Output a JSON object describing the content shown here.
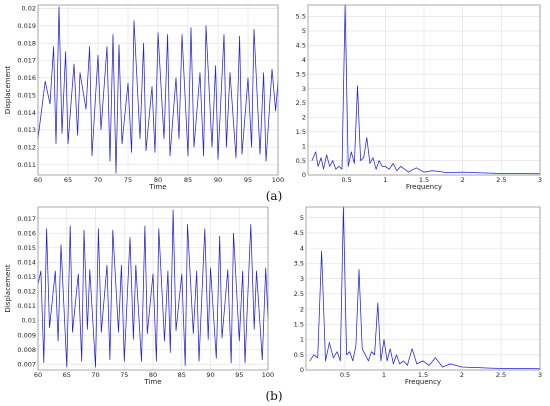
{
  "chart_data": [
    {
      "type": "line",
      "panel": "a-time",
      "xlabel": "Time",
      "ylabel": "Displacement",
      "xlim": [
        60,
        100
      ],
      "ylim": [
        0.0104,
        0.0202
      ],
      "xticks": [
        "60",
        "65",
        "70",
        "75",
        "80",
        "85",
        "90",
        "95",
        "100"
      ],
      "yticks": [
        "0.011",
        "0.012",
        "0.013",
        "0.014",
        "0.015",
        "0.016",
        "0.017",
        "0.018",
        "0.019",
        "0.02"
      ],
      "grid": true,
      "series": [
        {
          "x": [
            60,
            61.2,
            62,
            62.6,
            63,
            63.5,
            64,
            64.6,
            65,
            66,
            66.6,
            67,
            68,
            68.6,
            69,
            70,
            70.5,
            71.5,
            72,
            72.5,
            73,
            73.5,
            74,
            75,
            75.6,
            76,
            77,
            77.6,
            78,
            79,
            79.5,
            80,
            81,
            81.6,
            82,
            83,
            83.5,
            84,
            85,
            85.5,
            86,
            87,
            87.6,
            88,
            89,
            89.6,
            90,
            91,
            91.4,
            92,
            93,
            93.6,
            94,
            95,
            95.6,
            96,
            97,
            97.6,
            98,
            99,
            99.6,
            100
          ],
          "y": [
            0.0125,
            0.0158,
            0.0145,
            0.0178,
            0.0122,
            0.0201,
            0.0128,
            0.0175,
            0.0122,
            0.0168,
            0.0127,
            0.0163,
            0.0142,
            0.0178,
            0.0115,
            0.0173,
            0.013,
            0.0178,
            0.0112,
            0.0185,
            0.0105,
            0.0179,
            0.0122,
            0.0157,
            0.0117,
            0.0193,
            0.0125,
            0.018,
            0.0118,
            0.0155,
            0.0117,
            0.0186,
            0.0125,
            0.0185,
            0.0115,
            0.016,
            0.0125,
            0.0185,
            0.0115,
            0.0189,
            0.012,
            0.0163,
            0.0115,
            0.019,
            0.012,
            0.0167,
            0.0113,
            0.0185,
            0.012,
            0.0163,
            0.0114,
            0.0184,
            0.0116,
            0.016,
            0.012,
            0.0188,
            0.0116,
            0.0163,
            0.0112,
            0.0165,
            0.0141,
            0.0158
          ]
        }
      ]
    },
    {
      "type": "line",
      "panel": "a-freq",
      "xlabel": "Frequency",
      "ylabel": "",
      "xlim": [
        0,
        3
      ],
      "ylim": [
        0,
        5.9
      ],
      "xticks": [
        "0.5",
        "1",
        "1.5",
        "2",
        "2.5",
        "3"
      ],
      "yticks": [
        "0",
        "0.5",
        "1",
        "1.5",
        "2",
        "2.5",
        "3",
        "3.5",
        "4",
        "4.5",
        "5",
        "5.5"
      ],
      "grid": true,
      "series": [
        {
          "x": [
            0.05,
            0.1,
            0.13,
            0.17,
            0.2,
            0.24,
            0.28,
            0.32,
            0.36,
            0.4,
            0.44,
            0.48,
            0.52,
            0.56,
            0.6,
            0.64,
            0.68,
            0.72,
            0.76,
            0.8,
            0.84,
            0.88,
            0.92,
            0.96,
            1.0,
            1.05,
            1.1,
            1.15,
            1.2,
            1.3,
            1.4,
            1.5,
            1.6,
            1.7,
            1.8,
            2.0,
            2.2,
            2.4,
            2.6,
            2.8,
            3.0
          ],
          "y": [
            0.5,
            0.8,
            0.3,
            0.6,
            0.2,
            0.7,
            0.3,
            0.5,
            0.2,
            0.3,
            0.2,
            5.9,
            0.3,
            0.8,
            0.4,
            3.1,
            0.5,
            0.6,
            1.3,
            0.4,
            0.6,
            0.2,
            0.5,
            0.3,
            0.3,
            0.2,
            0.4,
            0.15,
            0.3,
            0.1,
            0.25,
            0.1,
            0.15,
            0.12,
            0.08,
            0.1,
            0.08,
            0.06,
            0.05,
            0.05,
            0.04
          ]
        }
      ]
    },
    {
      "type": "line",
      "panel": "b-time",
      "xlabel": "Time",
      "ylabel": "Displacement",
      "xlim": [
        60,
        100
      ],
      "ylim": [
        0.0066,
        0.0178
      ],
      "xticks": [
        "60",
        "65",
        "70",
        "75",
        "80",
        "85",
        "90",
        "95",
        "100"
      ],
      "yticks": [
        "0.007",
        "0.008",
        "0.009",
        "0.01",
        "0.011",
        "0.012",
        "0.013",
        "0.014",
        "0.015",
        "0.016",
        "0.017"
      ],
      "grid": true,
      "series": [
        {
          "x": [
            60,
            60.5,
            61,
            61.5,
            62,
            63,
            63.5,
            64,
            65,
            65.6,
            66,
            67,
            67.6,
            68,
            68.6,
            69,
            70,
            70.5,
            71,
            72,
            72.5,
            73,
            74,
            74.5,
            75,
            76,
            76.6,
            77,
            78,
            78.6,
            79,
            80,
            80.6,
            81,
            82,
            82.6,
            83,
            83.5,
            84,
            85,
            85.6,
            86,
            87,
            87.6,
            88,
            89,
            89.6,
            90,
            91,
            91.6,
            92,
            93,
            93.6,
            94,
            95,
            95.6,
            96,
            97,
            97.6,
            98,
            99,
            99.6,
            100
          ],
          "y": [
            0.0125,
            0.0134,
            0.0071,
            0.0163,
            0.0095,
            0.0134,
            0.0086,
            0.0152,
            0.0068,
            0.0165,
            0.0092,
            0.0132,
            0.0072,
            0.0162,
            0.0094,
            0.0135,
            0.0068,
            0.0163,
            0.0092,
            0.0138,
            0.0073,
            0.0162,
            0.0092,
            0.0138,
            0.0072,
            0.0157,
            0.0087,
            0.0138,
            0.0072,
            0.0165,
            0.0091,
            0.0132,
            0.0072,
            0.0163,
            0.0086,
            0.0134,
            0.0078,
            0.0176,
            0.0093,
            0.0132,
            0.0069,
            0.0166,
            0.0091,
            0.0134,
            0.0072,
            0.0163,
            0.0087,
            0.0136,
            0.0074,
            0.0158,
            0.0088,
            0.0135,
            0.0071,
            0.016,
            0.0086,
            0.0134,
            0.0071,
            0.0166,
            0.0094,
            0.0134,
            0.0073,
            0.0136,
            0.0101
          ]
        }
      ]
    },
    {
      "type": "line",
      "panel": "b-freq",
      "xlabel": "Frequency",
      "ylabel": "",
      "xlim": [
        0,
        3
      ],
      "ylim": [
        0,
        5.35
      ],
      "xticks": [
        "0.5",
        "1",
        "1.5",
        "2",
        "2.5",
        "3"
      ],
      "yticks": [
        "0",
        "0.5",
        "1",
        "1.5",
        "2",
        "2.5",
        "3",
        "3.5",
        "4",
        "4.5",
        "5"
      ],
      "grid": true,
      "series": [
        {
          "x": [
            0.05,
            0.1,
            0.15,
            0.2,
            0.25,
            0.3,
            0.35,
            0.4,
            0.44,
            0.48,
            0.52,
            0.56,
            0.6,
            0.64,
            0.68,
            0.72,
            0.76,
            0.8,
            0.84,
            0.88,
            0.92,
            0.96,
            1.0,
            1.04,
            1.08,
            1.12,
            1.16,
            1.2,
            1.25,
            1.3,
            1.36,
            1.42,
            1.5,
            1.58,
            1.66,
            1.75,
            1.85,
            2.0,
            2.2,
            2.4,
            2.6,
            2.8,
            3.0
          ],
          "y": [
            0.3,
            0.5,
            0.4,
            3.9,
            0.3,
            0.9,
            0.4,
            0.6,
            0.3,
            5.4,
            0.5,
            0.6,
            0.3,
            0.8,
            3.3,
            0.7,
            0.5,
            0.3,
            0.6,
            0.5,
            2.2,
            0.3,
            1.0,
            0.3,
            0.7,
            0.2,
            0.5,
            0.2,
            0.3,
            0.15,
            0.7,
            0.2,
            0.3,
            0.15,
            0.4,
            0.1,
            0.2,
            0.1,
            0.08,
            0.06,
            0.05,
            0.05,
            0.04
          ]
        }
      ]
    }
  ],
  "panel_labels": [
    "(a)",
    "(b)"
  ]
}
